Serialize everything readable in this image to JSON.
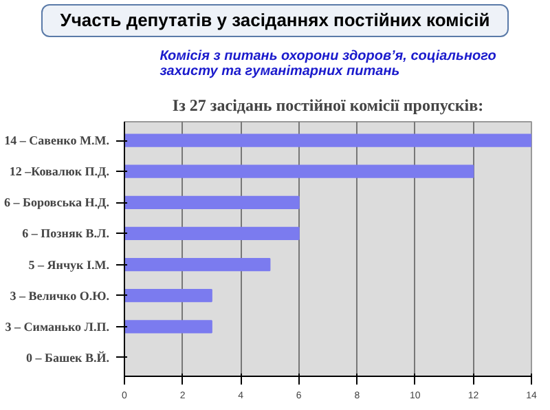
{
  "chart_data": {
    "type": "bar",
    "orientation": "horizontal",
    "title": "Участь депутатів у засіданнях постійних комісій",
    "subtitle": "Комісія з питань охорони здоров’я, соціального\nзахисту та гуманітарних питань",
    "annotations": [
      "Із 27 засідань постійної комісії пропусків:"
    ],
    "categories": [
      "14 – Савенко М.М.",
      "12 –Ковалюк П.Д.",
      "6 – Боровська Н.Д.",
      "6 – Позняк В.Л.",
      "5 – Янчук І.М.",
      "3 – Величко О.Ю.",
      "3 – Симанько Л.П.",
      "0 – Башек В.Й."
    ],
    "values": [
      14,
      12,
      6,
      6,
      5,
      3,
      3,
      0
    ],
    "color": "#7b7bef",
    "xlim": [
      0,
      14
    ],
    "xticks": [
      0,
      2,
      4,
      6,
      8,
      10,
      12,
      14
    ],
    "grid": "x"
  }
}
